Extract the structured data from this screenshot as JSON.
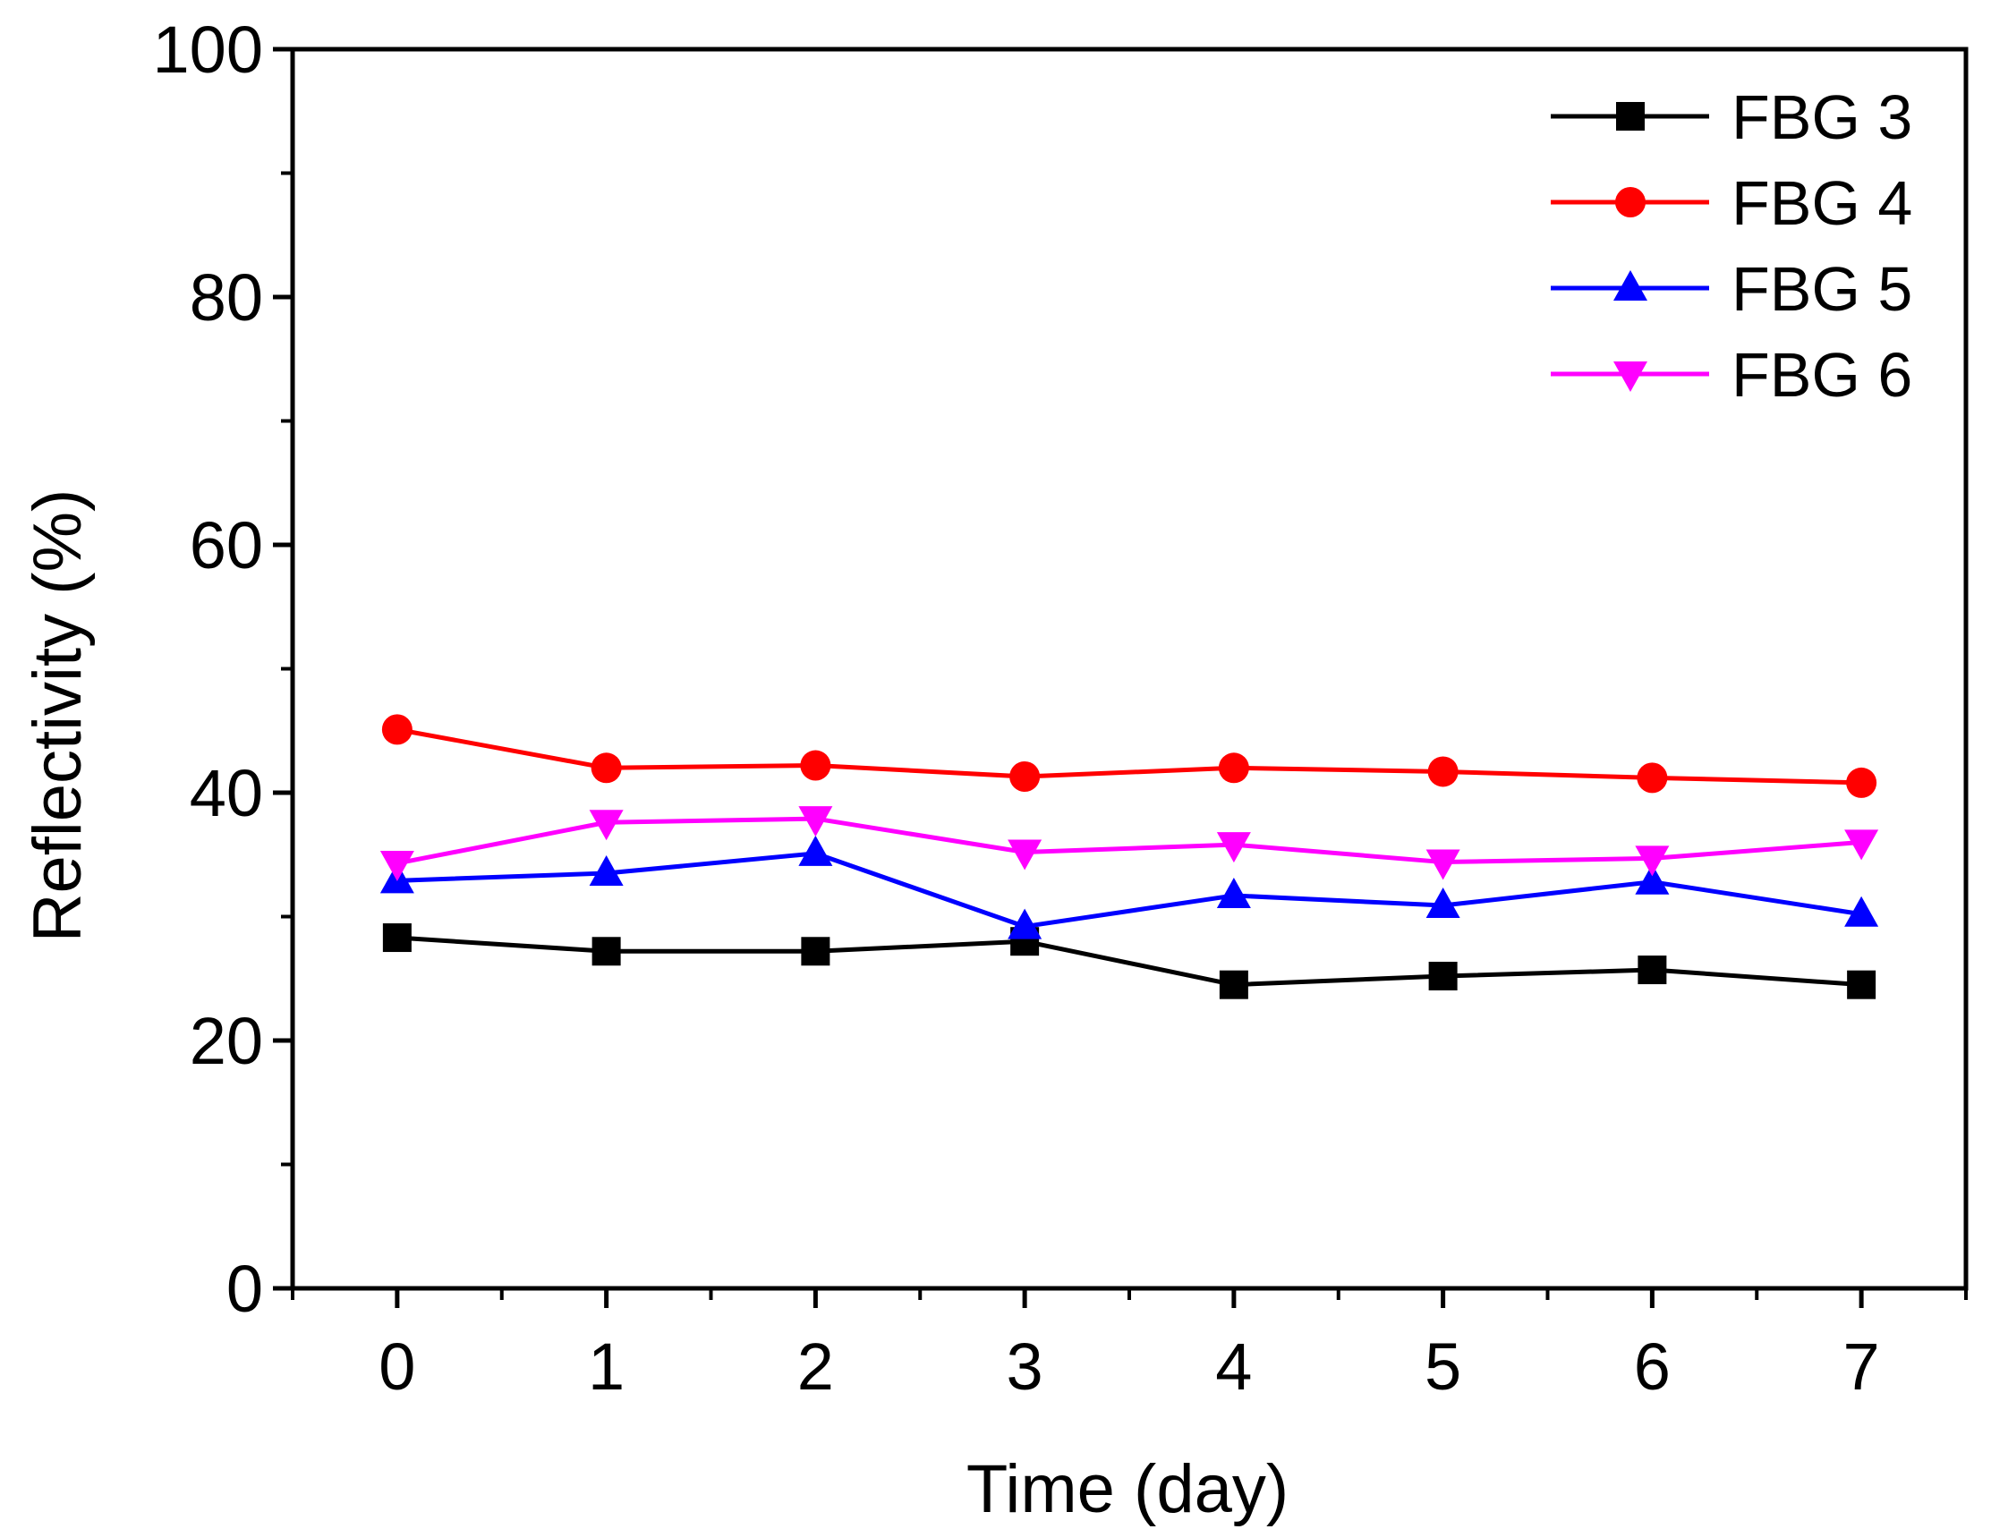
{
  "chart_data": {
    "type": "line",
    "title": "",
    "xlabel": "Time (day)",
    "ylabel": "Reflectivity (%)",
    "x": [
      0,
      1,
      2,
      3,
      4,
      5,
      6,
      7
    ],
    "xlim": [
      -0.5,
      7.5
    ],
    "ylim": [
      0,
      100
    ],
    "x_ticks": [
      0,
      1,
      2,
      3,
      4,
      5,
      6,
      7
    ],
    "y_ticks": [
      0,
      20,
      40,
      60,
      80,
      100
    ],
    "grid": false,
    "legend_position": "top-right",
    "series": [
      {
        "name": "FBG 3",
        "color": "#000000",
        "marker": "square",
        "values": [
          28.3,
          27.2,
          27.2,
          28.0,
          24.5,
          25.2,
          25.7,
          24.5
        ]
      },
      {
        "name": "FBG 4",
        "color": "#ff0000",
        "marker": "circle",
        "values": [
          45.1,
          42.0,
          42.2,
          41.3,
          42.0,
          41.7,
          41.2,
          40.8
        ]
      },
      {
        "name": "FBG 5",
        "color": "#0000ff",
        "marker": "triangle-up",
        "values": [
          32.9,
          33.5,
          35.1,
          29.2,
          31.7,
          30.9,
          32.8,
          30.2
        ]
      },
      {
        "name": "FBG 6",
        "color": "#ff00ff",
        "marker": "triangle-down",
        "values": [
          34.3,
          37.6,
          37.9,
          35.2,
          35.8,
          34.4,
          34.7,
          36.0
        ]
      }
    ]
  }
}
